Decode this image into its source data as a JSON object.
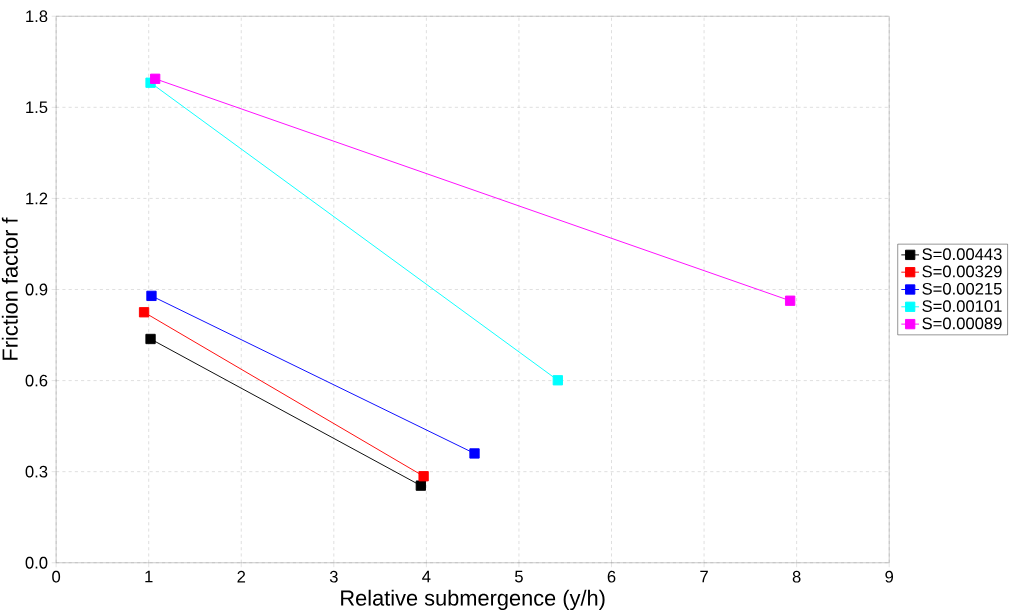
{
  "chart_data": {
    "type": "line",
    "xlabel": "Relative submergence (y/h)",
    "ylabel": "Friction factor f",
    "xlim": [
      0,
      9
    ],
    "xticks": [
      0,
      1,
      2,
      3,
      4,
      5,
      6,
      7,
      8,
      9
    ],
    "ylim": [
      0,
      1.8
    ],
    "yticks": [
      {
        "value": 0,
        "label": "0.0"
      },
      0.3,
      0.6,
      0.9,
      1.2,
      1.5,
      1.8
    ],
    "grid": true,
    "legend": "right",
    "marker": "square",
    "line_style": "solid",
    "series": [
      {
        "name": "S=0.00443",
        "color": "#000000",
        "x": [
          1.02,
          3.94
        ],
        "values": [
          0.737,
          0.254
        ]
      },
      {
        "name": "S=0.00329",
        "color": "#ff0000",
        "x": [
          0.95,
          3.97
        ],
        "values": [
          0.825,
          0.285
        ]
      },
      {
        "name": "S=0.00215",
        "color": "#0000ff",
        "x": [
          1.03,
          4.52
        ],
        "values": [
          0.879,
          0.36
        ]
      },
      {
        "name": "S=0.00101",
        "color": "#00ffff",
        "x": [
          1.02,
          5.42
        ],
        "values": [
          1.581,
          0.601
        ]
      },
      {
        "name": "S=0.00089",
        "color": "#ff00ff",
        "x": [
          1.07,
          7.93
        ],
        "values": [
          1.594,
          0.863
        ]
      }
    ]
  }
}
